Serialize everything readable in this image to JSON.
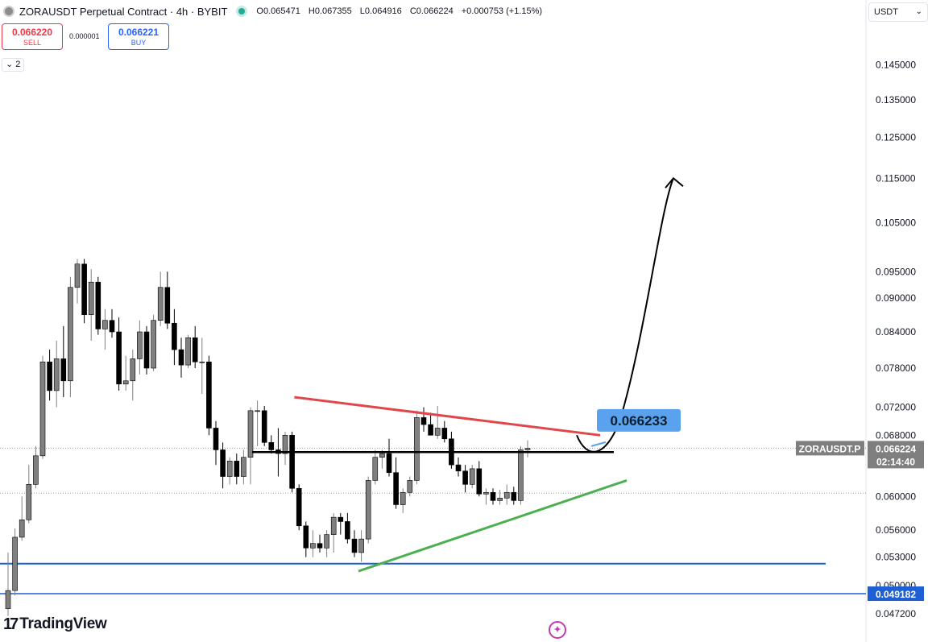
{
  "header": {
    "title": "ZORAUSDT Perpetual Contract · 4h · BYBIT",
    "ohlc": {
      "open": "O0.065471",
      "high": "H0.067355",
      "low": "L0.064916",
      "close": "C0.066224",
      "change": "+0.000753 (+1.15%)"
    },
    "status_color": "#22ab94"
  },
  "trade": {
    "sell_price": "0.066220",
    "sell_label": "SELL",
    "spread": "0.000001",
    "buy_price": "0.066221",
    "buy_label": "BUY"
  },
  "indicators_toggle": "2",
  "currency": "USDT",
  "brand": "TradingView",
  "chart_data": {
    "type": "candlestick",
    "y_scale": "log",
    "ylim": [
      0.0462,
      0.1545
    ],
    "y_ticks": [
      "0.145000",
      "0.135000",
      "0.125000",
      "0.115000",
      "0.105000",
      "0.095000",
      "0.090000",
      "0.084000",
      "0.078000",
      "0.072000",
      "0.068000",
      "0.060000",
      "0.056000",
      "0.053000",
      "0.050000",
      "0.047200"
    ],
    "candles": [
      {
        "o": 0.0477,
        "h": 0.0535,
        "l": 0.047,
        "c": 0.0495
      },
      {
        "o": 0.0495,
        "h": 0.0562,
        "l": 0.049,
        "c": 0.0552
      },
      {
        "o": 0.0552,
        "h": 0.06,
        "l": 0.0548,
        "c": 0.0572
      },
      {
        "o": 0.0572,
        "h": 0.064,
        "l": 0.0568,
        "c": 0.0615
      },
      {
        "o": 0.0615,
        "h": 0.0665,
        "l": 0.061,
        "c": 0.0652
      },
      {
        "o": 0.0652,
        "h": 0.08,
        "l": 0.0648,
        "c": 0.079
      },
      {
        "o": 0.079,
        "h": 0.081,
        "l": 0.073,
        "c": 0.0745
      },
      {
        "o": 0.0745,
        "h": 0.0825,
        "l": 0.072,
        "c": 0.0795
      },
      {
        "o": 0.0795,
        "h": 0.085,
        "l": 0.0735,
        "c": 0.076
      },
      {
        "o": 0.076,
        "h": 0.094,
        "l": 0.0735,
        "c": 0.092
      },
      {
        "o": 0.092,
        "h": 0.0975,
        "l": 0.089,
        "c": 0.0965
      },
      {
        "o": 0.0965,
        "h": 0.0975,
        "l": 0.0855,
        "c": 0.087
      },
      {
        "o": 0.087,
        "h": 0.0955,
        "l": 0.0825,
        "c": 0.093
      },
      {
        "o": 0.093,
        "h": 0.094,
        "l": 0.0835,
        "c": 0.0845
      },
      {
        "o": 0.0845,
        "h": 0.088,
        "l": 0.081,
        "c": 0.086
      },
      {
        "o": 0.086,
        "h": 0.088,
        "l": 0.083,
        "c": 0.084
      },
      {
        "o": 0.084,
        "h": 0.0865,
        "l": 0.0745,
        "c": 0.0755
      },
      {
        "o": 0.0755,
        "h": 0.08,
        "l": 0.0745,
        "c": 0.076
      },
      {
        "o": 0.076,
        "h": 0.081,
        "l": 0.073,
        "c": 0.0795
      },
      {
        "o": 0.0795,
        "h": 0.086,
        "l": 0.077,
        "c": 0.084
      },
      {
        "o": 0.084,
        "h": 0.085,
        "l": 0.077,
        "c": 0.078
      },
      {
        "o": 0.078,
        "h": 0.087,
        "l": 0.0775,
        "c": 0.086
      },
      {
        "o": 0.086,
        "h": 0.095,
        "l": 0.085,
        "c": 0.092
      },
      {
        "o": 0.092,
        "h": 0.095,
        "l": 0.0845,
        "c": 0.0855
      },
      {
        "o": 0.0855,
        "h": 0.088,
        "l": 0.0785,
        "c": 0.081
      },
      {
        "o": 0.081,
        "h": 0.083,
        "l": 0.0765,
        "c": 0.0785
      },
      {
        "o": 0.0785,
        "h": 0.0835,
        "l": 0.078,
        "c": 0.083
      },
      {
        "o": 0.083,
        "h": 0.085,
        "l": 0.078,
        "c": 0.079
      },
      {
        "o": 0.079,
        "h": 0.083,
        "l": 0.074,
        "c": 0.079
      },
      {
        "o": 0.079,
        "h": 0.08,
        "l": 0.068,
        "c": 0.069
      },
      {
        "o": 0.069,
        "h": 0.07,
        "l": 0.064,
        "c": 0.066
      },
      {
        "o": 0.066,
        "h": 0.067,
        "l": 0.061,
        "c": 0.0625
      },
      {
        "o": 0.0625,
        "h": 0.065,
        "l": 0.0615,
        "c": 0.0645
      },
      {
        "o": 0.0645,
        "h": 0.0655,
        "l": 0.0615,
        "c": 0.0625
      },
      {
        "o": 0.0625,
        "h": 0.066,
        "l": 0.0615,
        "c": 0.065
      },
      {
        "o": 0.065,
        "h": 0.072,
        "l": 0.0615,
        "c": 0.0715
      },
      {
        "o": 0.0715,
        "h": 0.073,
        "l": 0.0665,
        "c": 0.0715
      },
      {
        "o": 0.0715,
        "h": 0.0722,
        "l": 0.0665,
        "c": 0.067
      },
      {
        "o": 0.067,
        "h": 0.068,
        "l": 0.0655,
        "c": 0.066
      },
      {
        "o": 0.066,
        "h": 0.069,
        "l": 0.0625,
        "c": 0.0655
      },
      {
        "o": 0.0655,
        "h": 0.0685,
        "l": 0.064,
        "c": 0.068
      },
      {
        "o": 0.068,
        "h": 0.0685,
        "l": 0.0605,
        "c": 0.061
      },
      {
        "o": 0.061,
        "h": 0.0615,
        "l": 0.056,
        "c": 0.0565
      },
      {
        "o": 0.0565,
        "h": 0.057,
        "l": 0.053,
        "c": 0.054
      },
      {
        "o": 0.054,
        "h": 0.056,
        "l": 0.053,
        "c": 0.0545
      },
      {
        "o": 0.0545,
        "h": 0.0555,
        "l": 0.0535,
        "c": 0.054
      },
      {
        "o": 0.054,
        "h": 0.056,
        "l": 0.053,
        "c": 0.0555
      },
      {
        "o": 0.0555,
        "h": 0.058,
        "l": 0.0535,
        "c": 0.0575
      },
      {
        "o": 0.0575,
        "h": 0.058,
        "l": 0.0555,
        "c": 0.057
      },
      {
        "o": 0.057,
        "h": 0.058,
        "l": 0.0545,
        "c": 0.055
      },
      {
        "o": 0.055,
        "h": 0.056,
        "l": 0.053,
        "c": 0.0535
      },
      {
        "o": 0.0535,
        "h": 0.056,
        "l": 0.0525,
        "c": 0.055
      },
      {
        "o": 0.055,
        "h": 0.0625,
        "l": 0.0545,
        "c": 0.062
      },
      {
        "o": 0.062,
        "h": 0.066,
        "l": 0.0615,
        "c": 0.065
      },
      {
        "o": 0.065,
        "h": 0.066,
        "l": 0.0635,
        "c": 0.0655
      },
      {
        "o": 0.0655,
        "h": 0.0675,
        "l": 0.0625,
        "c": 0.063
      },
      {
        "o": 0.063,
        "h": 0.065,
        "l": 0.0585,
        "c": 0.059
      },
      {
        "o": 0.059,
        "h": 0.061,
        "l": 0.058,
        "c": 0.0605
      },
      {
        "o": 0.0605,
        "h": 0.0625,
        "l": 0.06,
        "c": 0.062
      },
      {
        "o": 0.062,
        "h": 0.0715,
        "l": 0.0615,
        "c": 0.0705
      },
      {
        "o": 0.0705,
        "h": 0.072,
        "l": 0.0685,
        "c": 0.0695
      },
      {
        "o": 0.0695,
        "h": 0.0712,
        "l": 0.068,
        "c": 0.068
      },
      {
        "o": 0.068,
        "h": 0.0722,
        "l": 0.0675,
        "c": 0.069
      },
      {
        "o": 0.069,
        "h": 0.07,
        "l": 0.067,
        "c": 0.0675
      },
      {
        "o": 0.0675,
        "h": 0.0685,
        "l": 0.0635,
        "c": 0.064
      },
      {
        "o": 0.064,
        "h": 0.065,
        "l": 0.0625,
        "c": 0.0632
      },
      {
        "o": 0.0632,
        "h": 0.064,
        "l": 0.0605,
        "c": 0.0615
      },
      {
        "o": 0.0615,
        "h": 0.064,
        "l": 0.061,
        "c": 0.0635
      },
      {
        "o": 0.0635,
        "h": 0.0645,
        "l": 0.06,
        "c": 0.0603
      },
      {
        "o": 0.0603,
        "h": 0.061,
        "l": 0.059,
        "c": 0.0605
      },
      {
        "o": 0.0605,
        "h": 0.061,
        "l": 0.059,
        "c": 0.0595
      },
      {
        "o": 0.0595,
        "h": 0.0608,
        "l": 0.059,
        "c": 0.0598
      },
      {
        "o": 0.0598,
        "h": 0.0615,
        "l": 0.059,
        "c": 0.0605
      },
      {
        "o": 0.0605,
        "h": 0.0612,
        "l": 0.059,
        "c": 0.0595
      },
      {
        "o": 0.0595,
        "h": 0.0665,
        "l": 0.059,
        "c": 0.066
      },
      {
        "o": 0.066,
        "h": 0.0673,
        "l": 0.065,
        "c": 0.0662
      }
    ],
    "levels": {
      "last_price": 0.066224,
      "horizontal_resistance": 0.0657,
      "support_1": 0.0523,
      "support_2": 0.049182,
      "dotted_level": 0.0604
    },
    "trendlines": {
      "red_resistance": [
        {
          "i": 44,
          "p": 0.0735
        },
        {
          "i": 92,
          "p": 0.068
        }
      ],
      "green_support": [
        {
          "i": 56,
          "p": 0.0515
        },
        {
          "i": 98,
          "p": 0.062
        }
      ]
    },
    "price_tag": "0.066233",
    "symbol_tag": "ZORAUSDT.P",
    "last_price_label": "0.066224",
    "countdown": "02:14:40",
    "support_2_label": "0.049182",
    "colors": {
      "up": "#808080",
      "down": "#000000",
      "resistance_line": "#e0474c",
      "support_trend": "#4caf50",
      "support_levels": "#1e5fd4",
      "price_tag": "#5aa2ee",
      "axis_badge": "#7f7f7f"
    }
  }
}
